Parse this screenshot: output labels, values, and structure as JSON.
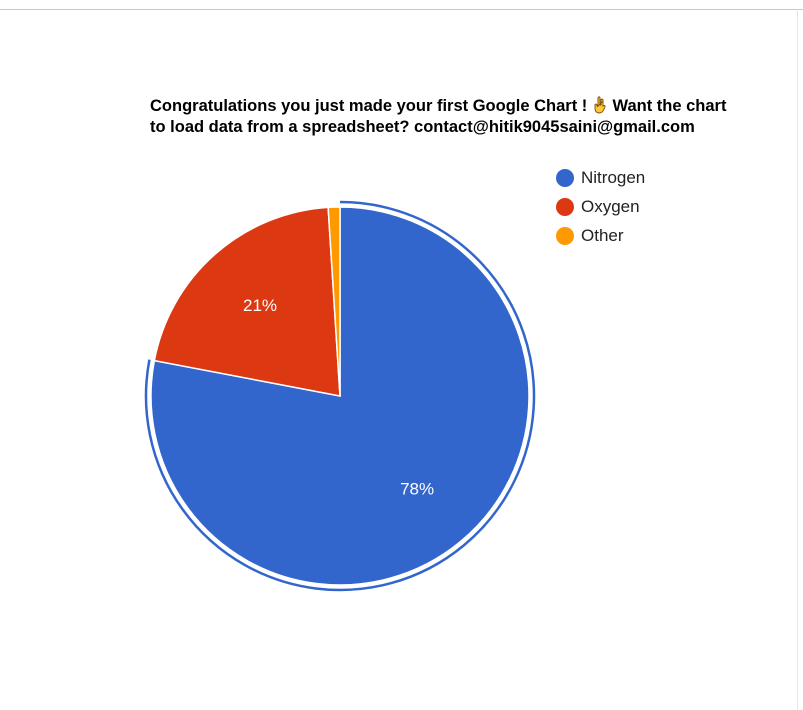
{
  "chart_data": {
    "type": "pie",
    "title_line1": "Congratulations you just made your first Google Chart !",
    "title_line1_tail": "Want the chart",
    "title_line2": "to load data from a spreadsheet? contact@hitik9045saini@gmail.com",
    "title_emoji": "crossed-fingers-icon",
    "legend_position": "right",
    "highlighted_slice": "Nitrogen",
    "slices": [
      {
        "label": "Nitrogen",
        "value": 78,
        "color": "#3366cc",
        "data_label": "78%"
      },
      {
        "label": "Oxygen",
        "value": 21,
        "color": "#dc3912",
        "data_label": "21%"
      },
      {
        "label": "Other",
        "value": 1,
        "color": "#ff9900",
        "data_label": ""
      }
    ]
  }
}
